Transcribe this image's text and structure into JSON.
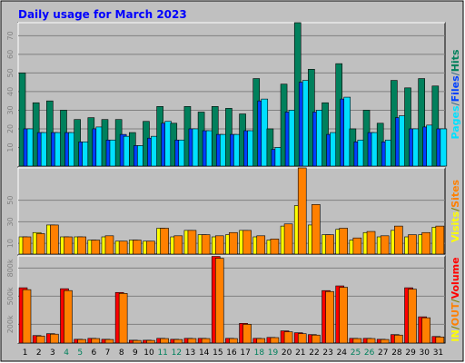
{
  "title": "Daily usage for March 2023",
  "chart_data": [
    {
      "type": "bar",
      "name": "Hits / Files / Pages",
      "axis_label_parts": [
        {
          "text": "Hits",
          "color": "#00805c"
        },
        {
          "text": "/",
          "color": "#3c6e8c"
        },
        {
          "text": "Files",
          "color": "#0040ff"
        },
        {
          "text": "/",
          "color": "#3c6e8c"
        },
        {
          "text": "Pages",
          "color": "#00e0ff"
        }
      ],
      "ticks": [
        10,
        20,
        30,
        40,
        50,
        60,
        70
      ],
      "ylim": [
        0,
        77
      ],
      "categories": [
        "1",
        "2",
        "3",
        "4",
        "5",
        "6",
        "7",
        "8",
        "9",
        "10",
        "11",
        "12",
        "13",
        "14",
        "15",
        "16",
        "17",
        "18",
        "19",
        "20",
        "21",
        "22",
        "23",
        "24",
        "25",
        "26",
        "27",
        "28",
        "29",
        "30",
        "31"
      ],
      "series": [
        {
          "name": "Hits",
          "color": "#00805c",
          "values": [
            50,
            34,
            35,
            30,
            25,
            26,
            25,
            25,
            18,
            24,
            32,
            23,
            32,
            29,
            32,
            31,
            28,
            47,
            20,
            44,
            77,
            52,
            34,
            55,
            20,
            30,
            23,
            46,
            42,
            47,
            43
          ]
        },
        {
          "name": "Files",
          "color": "#0040ff",
          "values": [
            20,
            18,
            18,
            18,
            13,
            20,
            14,
            17,
            11,
            15,
            23,
            14,
            20,
            19,
            17,
            17,
            19,
            35,
            9,
            29,
            45,
            29,
            17,
            36,
            13,
            18,
            13,
            26,
            20,
            21,
            20
          ]
        },
        {
          "name": "Pages",
          "color": "#00e0ff",
          "values": [
            20,
            18,
            18,
            18,
            13,
            21,
            14,
            16,
            11,
            16,
            24,
            14,
            20,
            19,
            17,
            17,
            19,
            36,
            10,
            30,
            46,
            30,
            18,
            37,
            14,
            18,
            14,
            27,
            20,
            22,
            20
          ]
        }
      ]
    },
    {
      "type": "bar",
      "name": "Sites / Visits",
      "axis_label_parts": [
        {
          "text": "Sites",
          "color": "#ff8000"
        },
        {
          "text": "/",
          "color": "#808000"
        },
        {
          "text": "Visits",
          "color": "#ffff00"
        }
      ],
      "ticks": [
        10,
        30,
        50
      ],
      "ylim": [
        0,
        80
      ],
      "series": [
        {
          "name": "Visits",
          "color": "#ffff00",
          "values": [
            16,
            20,
            27,
            16,
            16,
            13,
            16,
            12,
            13,
            12,
            24,
            16,
            22,
            18,
            16,
            18,
            22,
            16,
            13,
            26,
            45,
            27,
            18,
            23,
            13,
            20,
            16,
            22,
            16,
            18,
            25
          ]
        },
        {
          "name": "Sites",
          "color": "#ff8000",
          "values": [
            16,
            19,
            27,
            16,
            16,
            13,
            17,
            12,
            13,
            12,
            24,
            17,
            22,
            18,
            17,
            20,
            22,
            17,
            14,
            28,
            80,
            46,
            18,
            24,
            15,
            21,
            17,
            26,
            18,
            20,
            26
          ]
        }
      ]
    },
    {
      "type": "bar",
      "name": "Volume / OUT / IN",
      "axis_label_parts": [
        {
          "text": "Volume",
          "color": "#ff0000"
        },
        {
          "text": "/",
          "color": "#808000"
        },
        {
          "text": "OUT",
          "color": "#ff8000"
        },
        {
          "text": "/",
          "color": "#808000"
        },
        {
          "text": "IN",
          "color": "#ffff00"
        }
      ],
      "ticks": [
        200000,
        500000,
        800000
      ],
      "tick_labels": [
        "200k",
        "500k",
        "800k"
      ],
      "ylim": [
        0,
        930000
      ],
      "series": [
        {
          "name": "Volume",
          "color": "#ff0000",
          "values": [
            590000,
            80000,
            100000,
            580000,
            40000,
            50000,
            40000,
            540000,
            30000,
            30000,
            50000,
            40000,
            50000,
            50000,
            925000,
            50000,
            210000,
            50000,
            60000,
            130000,
            110000,
            90000,
            560000,
            610000,
            50000,
            50000,
            40000,
            90000,
            590000,
            280000,
            70000
          ]
        },
        {
          "name": "OUT",
          "color": "#ff8000",
          "values": [
            570000,
            75000,
            95000,
            560000,
            38000,
            48000,
            38000,
            530000,
            28000,
            28000,
            48000,
            38000,
            48000,
            48000,
            905000,
            48000,
            200000,
            48000,
            58000,
            120000,
            100000,
            85000,
            550000,
            595000,
            48000,
            48000,
            38000,
            85000,
            575000,
            270000,
            65000
          ]
        }
      ]
    }
  ],
  "x_labels": [
    {
      "text": "1",
      "color": "#000000"
    },
    {
      "text": "2",
      "color": "#000000"
    },
    {
      "text": "3",
      "color": "#000000"
    },
    {
      "text": "4",
      "color": "#00805c"
    },
    {
      "text": "5",
      "color": "#00805c"
    },
    {
      "text": "6",
      "color": "#000000"
    },
    {
      "text": "7",
      "color": "#000000"
    },
    {
      "text": "8",
      "color": "#000000"
    },
    {
      "text": "9",
      "color": "#000000"
    },
    {
      "text": "10",
      "color": "#000000"
    },
    {
      "text": "11",
      "color": "#00805c"
    },
    {
      "text": "12",
      "color": "#00805c"
    },
    {
      "text": "13",
      "color": "#000000"
    },
    {
      "text": "14",
      "color": "#000000"
    },
    {
      "text": "15",
      "color": "#000000"
    },
    {
      "text": "16",
      "color": "#000000"
    },
    {
      "text": "17",
      "color": "#000000"
    },
    {
      "text": "18",
      "color": "#00805c"
    },
    {
      "text": "19",
      "color": "#00805c"
    },
    {
      "text": "20",
      "color": "#000000"
    },
    {
      "text": "21",
      "color": "#000000"
    },
    {
      "text": "22",
      "color": "#000000"
    },
    {
      "text": "23",
      "color": "#000000"
    },
    {
      "text": "24",
      "color": "#000000"
    },
    {
      "text": "25",
      "color": "#00805c"
    },
    {
      "text": "26",
      "color": "#00805c"
    },
    {
      "text": "27",
      "color": "#000000"
    },
    {
      "text": "28",
      "color": "#000000"
    },
    {
      "text": "29",
      "color": "#000000"
    },
    {
      "text": "30",
      "color": "#000000"
    },
    {
      "text": "31",
      "color": "#000000"
    }
  ],
  "colors": {
    "page_bg": "#c0c0c0",
    "panel_bg": "#c0c0c0",
    "grid": "#808080",
    "title": "#0000ff",
    "tick": "#808080"
  }
}
